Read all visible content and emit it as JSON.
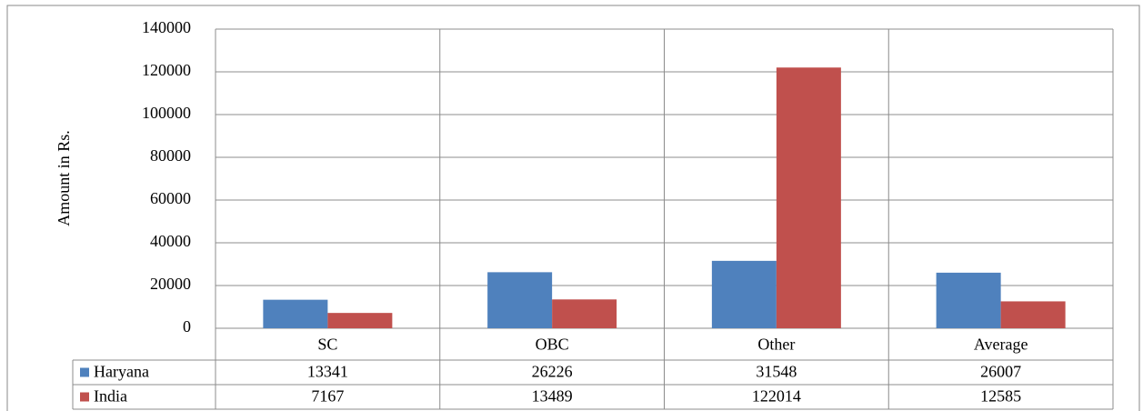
{
  "chart_data": {
    "type": "bar",
    "y_label": "Amount in Rs.",
    "categories": [
      "SC",
      "OBC",
      "Other",
      "Average"
    ],
    "series": [
      {
        "name": "Haryana",
        "color": "#4f81bd",
        "values": [
          13341,
          26226,
          31548,
          26007
        ]
      },
      {
        "name": "India",
        "color": "#c0504d",
        "values": [
          7167,
          13489,
          122014,
          12585
        ]
      }
    ],
    "ylim": [
      0,
      140000
    ],
    "yticks": [
      0,
      20000,
      40000,
      60000,
      80000,
      100000,
      120000,
      140000
    ],
    "grid": true
  }
}
